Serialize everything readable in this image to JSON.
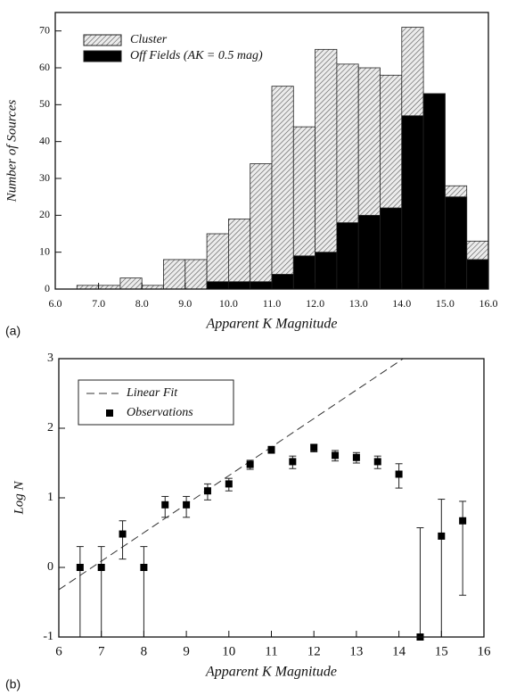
{
  "chart_data": [
    {
      "type": "histogram",
      "label": "(a)",
      "x_label": "Apparent K Magnitude",
      "y_label": "Number of Sources",
      "bins": [
        6.0,
        6.5,
        7.0,
        7.5,
        8.0,
        8.5,
        9.0,
        9.5,
        10.0,
        10.5,
        11.0,
        11.5,
        12.0,
        12.5,
        13.0,
        13.5,
        14.0,
        14.5,
        15.0,
        15.5,
        16.0
      ],
      "series": [
        {
          "name": "Cluster",
          "color": "#555555",
          "pattern": "hatch",
          "values": [
            0,
            1,
            1,
            3,
            1,
            8,
            8,
            15,
            19,
            34,
            55,
            44,
            65,
            61,
            60,
            58,
            71,
            53,
            28,
            13
          ]
        },
        {
          "name": "Off Fields (AK = 0.5 mag)",
          "color": "#000000",
          "values": [
            0,
            0,
            0,
            0,
            0,
            0,
            0,
            2,
            2,
            2,
            4,
            9,
            10,
            18,
            20,
            22,
            47,
            53,
            25,
            8
          ]
        }
      ],
      "xlim": [
        6.0,
        16.0
      ],
      "xticks": [
        {
          "value": 6,
          "label": "6.0"
        },
        {
          "value": 7,
          "label": "7.0"
        },
        {
          "value": 8,
          "label": "8.0"
        },
        {
          "value": 9,
          "label": "9.0"
        },
        {
          "value": 10,
          "label": "10.0"
        },
        {
          "value": 11,
          "label": "11.0"
        },
        {
          "value": 12,
          "label": "12.0"
        },
        {
          "value": 13,
          "label": "13.0"
        },
        {
          "value": 14,
          "label": "14.0"
        },
        {
          "value": 15,
          "label": "15.0"
        },
        {
          "value": 16,
          "label": "16.0"
        }
      ],
      "ylim": [
        0,
        75
      ],
      "yticks": [
        0,
        10,
        20,
        30,
        40,
        50,
        60,
        70
      ]
    },
    {
      "type": "scatter",
      "label": "(b)",
      "x_label": "Apparent K Magnitude",
      "y_label": "Log N",
      "series": [
        {
          "name": "Linear Fit",
          "type": "line",
          "dashed": true,
          "color": "#333333",
          "x": [
            6,
            14.1
          ],
          "values": [
            -0.32,
            3
          ]
        },
        {
          "name": "Observations",
          "type": "points",
          "color": "#000000",
          "x": [
            6.5,
            7.0,
            7.5,
            8.0,
            8.5,
            9.0,
            9.5,
            10.0,
            10.5,
            11.0,
            11.5,
            12.0,
            12.5,
            13.0,
            13.5,
            14.0,
            14.5,
            15.0,
            15.5
          ],
          "values": [
            0,
            0,
            0.48,
            0,
            0.9,
            0.9,
            1.1,
            1.2,
            1.48,
            1.69,
            1.52,
            1.72,
            1.61,
            1.58,
            1.52,
            1.34,
            -1,
            0.45,
            0.67
          ],
          "error_minus": [
            1,
            1,
            0.36,
            1,
            0.18,
            0.18,
            0.13,
            0.1,
            0.07,
            0.05,
            0.1,
            0.06,
            0.08,
            0.08,
            0.1,
            0.2,
            0,
            1.45,
            1.07
          ],
          "error_plus": [
            0.3,
            0.3,
            0.19,
            0.3,
            0.12,
            0.12,
            0.1,
            0.08,
            0.06,
            0.05,
            0.08,
            0.05,
            0.07,
            0.07,
            0.08,
            0.15,
            1.57,
            0.53,
            0.28
          ]
        }
      ],
      "xlim": [
        6,
        16
      ],
      "xticks": [
        6,
        7,
        8,
        9,
        10,
        11,
        12,
        13,
        14,
        15,
        16
      ],
      "ylim": [
        -1,
        3
      ],
      "yticks": [
        -1,
        0,
        1,
        2,
        3
      ]
    }
  ]
}
